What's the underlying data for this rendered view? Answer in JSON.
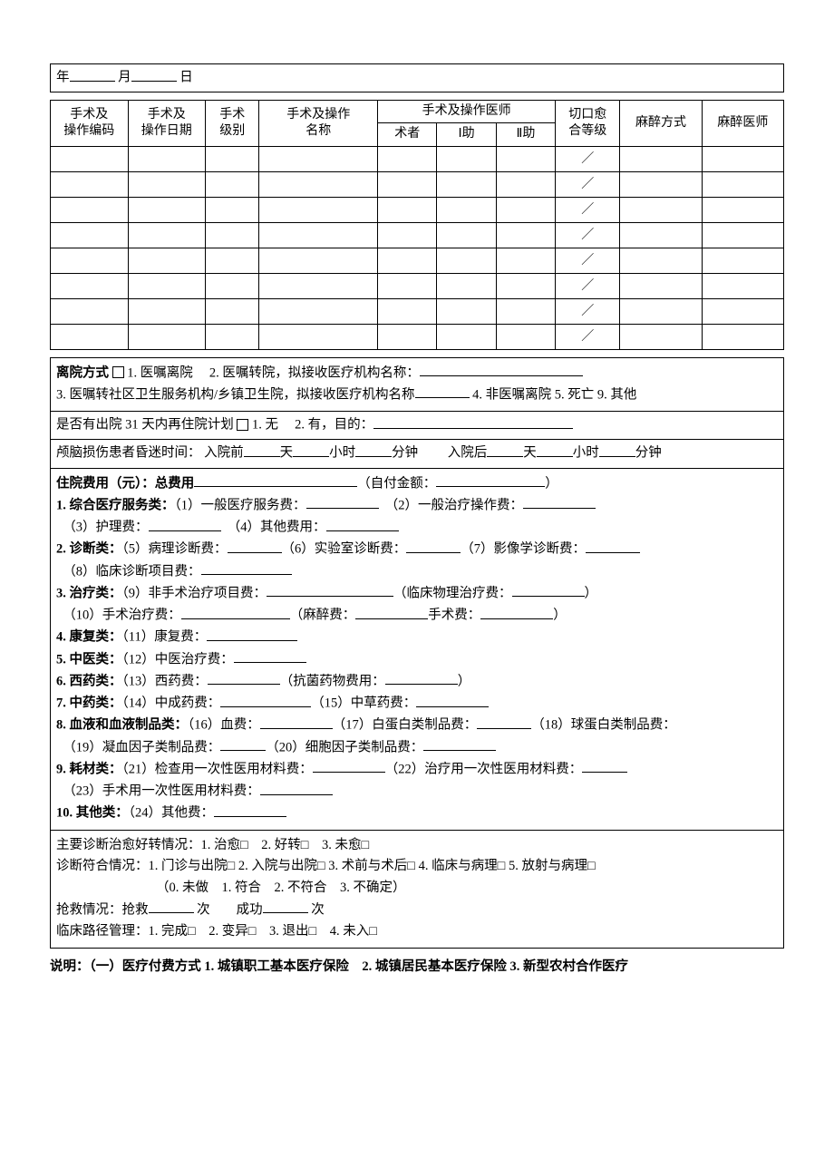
{
  "date_row": {
    "year": "年",
    "month": "月",
    "day": "日"
  },
  "surgery_table": {
    "headers": {
      "code": "手术及\n操作编码",
      "date": "手术及\n操作日期",
      "level": "手术\n级别",
      "name": "手术及操作\n名称",
      "doctors": "手术及操作医师",
      "surgeon": "术者",
      "assist1": "Ⅰ助",
      "assist2": "Ⅱ助",
      "incision": "切口愈\n合等级",
      "anesthesia": "麻醉方式",
      "anesthetist": "麻醉医师"
    },
    "row_count": 8,
    "incision_cell": "／"
  },
  "discharge": {
    "label": "离院方式",
    "cb": "□",
    "opt1": "1. 医嘱离院",
    "opt2": "2. 医嘱转院，拟接收医疗机构名称：",
    "opt3": "3. 医嘱转社区卫生服务机构/乡镇卫生院，拟接收医疗机构名称",
    "opt4": "4. 非医嘱离院",
    "opt5": "5. 死亡",
    "opt9": "9. 其他"
  },
  "readmit": {
    "text": "是否有出院 31 天内再住院计划",
    "cb": "□",
    "opt1": "1. 无",
    "opt2": "2. 有，目的："
  },
  "coma": {
    "label": "颅脑损伤患者昏迷时间：",
    "pre": "入院前",
    "post": "入院后",
    "d": "天",
    "h": "小时",
    "m": "分钟"
  },
  "fees": {
    "title": "住院费用（元）：总费用",
    "selfpay_l": "（自付金额：",
    "selfpay_r": "）",
    "g1": {
      "h": "1. 综合医疗服务类：",
      "a": "（1）一般医疗服务费：",
      "b": "（2）一般治疗操作费：",
      "c": "（3）护理费：",
      "d": "（4）其他费用："
    },
    "g2": {
      "h": "2. 诊断类：",
      "a": "（5）病理诊断费：",
      "b": "（6）实验室诊断费：",
      "c": "（7）影像学诊断费：",
      "d": "（8）临床诊断项目费："
    },
    "g3": {
      "h": "3. 治疗类：",
      "a": "（9）非手术治疗项目费：",
      "pa_l": "（临床物理治疗费：",
      "pa_r": "）",
      "b": "（10）手术治疗费：",
      "an_l": "（麻醉费：",
      "op": "手术费：",
      "cp": "）"
    },
    "g4": {
      "h": "4. 康复类：",
      "a": "（11）康复费："
    },
    "g5": {
      "h": "5. 中医类：",
      "a": "（12）中医治疗费："
    },
    "g6": {
      "h": "6. 西药类：",
      "a": "（13）西药费：",
      "b_l": "（抗菌药物费用：",
      "b_r": "）"
    },
    "g7": {
      "h": "7. 中药类：",
      "a": "（14）中成药费：",
      "b": "（15）中草药费："
    },
    "g8": {
      "h": "8. 血液和血液制品类：",
      "a": "（16）血费：",
      "b": "（17）白蛋白类制品费：",
      "c": "（18）球蛋白类制品费：",
      "d": "（19）凝血因子类制品费：",
      "e": "（20）细胞因子类制品费："
    },
    "g9": {
      "h": "9. 耗材类：",
      "a": "（21）检查用一次性医用材料费：",
      "b": "（22）治疗用一次性医用材料费：",
      "c": "（23）手术用一次性医用材料费："
    },
    "g10": {
      "h": "10. 其他类：",
      "a": "（24）其他费："
    }
  },
  "diag": {
    "l1": "主要诊断治愈好转情况：1. 治愈□　2. 好转□　3. 未愈□",
    "l2": "诊断符合情况：1. 门诊与出院□ 2. 入院与出院□ 3. 术前与术后□ 4. 临床与病理□ 5. 放射与病理□",
    "l3": "（0. 未做　1. 符合　2. 不符合　3. 不确定）",
    "l4a": "抢救情况：抢救",
    "l4b": "次　　成功",
    "l4c": "次",
    "l5": "临床路径管理：1. 完成□　2. 变异□　3. 退出□　4. 未入□"
  },
  "footer": "说明：（一）医疗付费方式 1. 城镇职工基本医疗保险　2. 城镇居民基本医疗保险 3. 新型农村合作医疗"
}
